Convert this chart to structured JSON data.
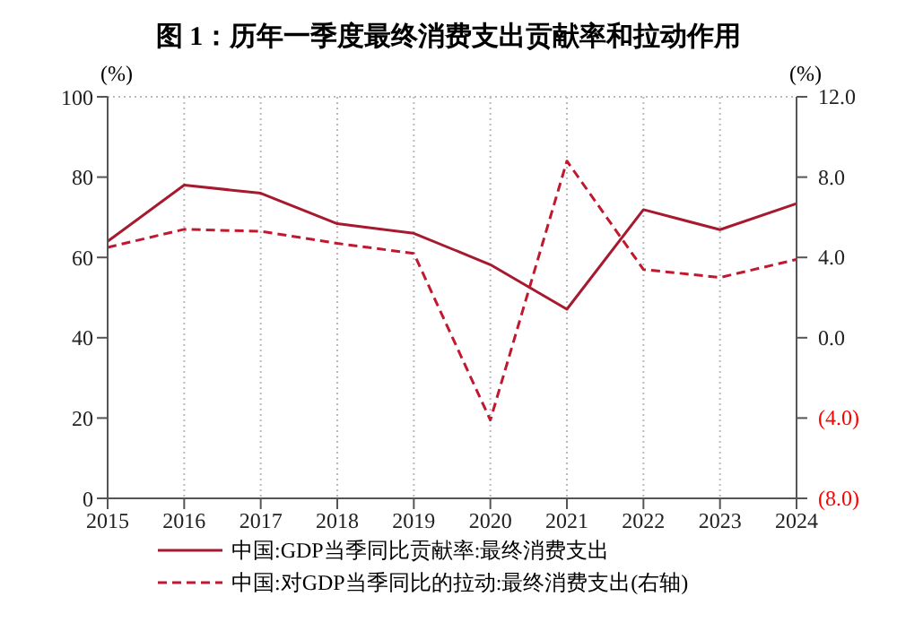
{
  "chart_data": {
    "type": "line",
    "title": "图 1：历年一季度最终消费支出贡献率和拉动作用",
    "categories": [
      "2015",
      "2016",
      "2017",
      "2018",
      "2019",
      "2020",
      "2021",
      "2022",
      "2023",
      "2024"
    ],
    "series": [
      {
        "name": "中国:GDP当季同比贡献率:最终消费支出",
        "color": "#a6192e",
        "line_style": "solid",
        "values": [
          64.0,
          78.0,
          76.0,
          68.4,
          66.0,
          58.2,
          47.1,
          71.9,
          66.9,
          73.4
        ]
      },
      {
        "name": "中国:对GDP当季同比的拉动:最终消费支出(右轴)",
        "color": "#c0182e",
        "line_style": "dashed",
        "axis": "y2",
        "values": [
          4.5,
          5.4,
          5.3,
          4.7,
          4.2,
          -4.1,
          8.8,
          3.4,
          3.0,
          3.9
        ]
      }
    ],
    "ylabel": "(%)",
    "y2label": "(%)",
    "ylim": [
      0,
      100
    ],
    "yticks": [
      0,
      20,
      40,
      60,
      80,
      100
    ],
    "y2lim": [
      -8,
      12
    ],
    "y2ticks": [
      {
        "value": -8,
        "label": "(8.0)"
      },
      {
        "value": -4,
        "label": "(4.0)"
      },
      {
        "value": 0,
        "label": "0.0"
      },
      {
        "value": 4,
        "label": "4.0"
      },
      {
        "value": 8,
        "label": "8.0"
      },
      {
        "value": 12,
        "label": "12.0"
      }
    ],
    "grid": true,
    "legend": "bottom",
    "marker": "none"
  }
}
